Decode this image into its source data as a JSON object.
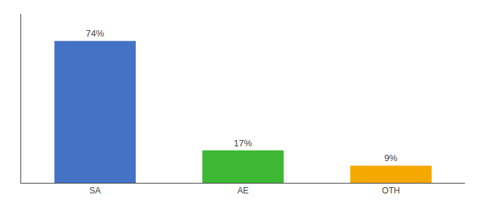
{
  "chart_data": {
    "type": "bar",
    "categories": [
      "SA",
      "AE",
      "OTH"
    ],
    "values": [
      74,
      17,
      9
    ],
    "value_labels": [
      "74%",
      "17%",
      "9%"
    ],
    "colors": [
      "#4472C4",
      "#3CB832",
      "#F5A800"
    ],
    "data_labels": true,
    "ylim": [
      0,
      88
    ],
    "grid": false,
    "tick_labels": "x"
  }
}
